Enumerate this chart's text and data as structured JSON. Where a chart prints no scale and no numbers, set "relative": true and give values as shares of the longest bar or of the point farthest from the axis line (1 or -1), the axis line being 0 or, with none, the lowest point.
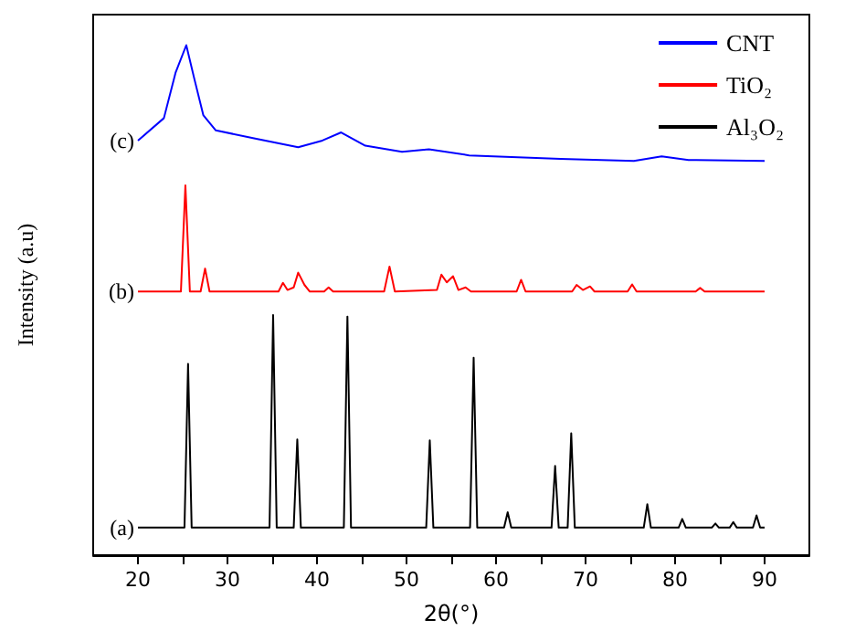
{
  "chart_data": {
    "type": "line",
    "relative": true,
    "xlabel": "2θ(°)",
    "ylabel": "Intensity (a.u)",
    "xlim": [
      15,
      95
    ],
    "xticks": [
      20,
      {
        "value": 25,
        "label": null
      },
      30,
      {
        "value": 35,
        "label": null
      },
      40,
      {
        "value": 45,
        "label": null
      },
      50,
      {
        "value": 55,
        "label": null
      },
      60,
      {
        "value": 65,
        "label": null
      },
      70,
      {
        "value": 75,
        "label": null
      },
      80,
      {
        "value": 85,
        "label": null
      },
      90
    ],
    "legend": "top right",
    "grid": false,
    "marker": "none",
    "line_style": "solid",
    "annotations": [
      "(c)",
      "(b)",
      "(a)"
    ],
    "series": [
      {
        "name": "CNT",
        "color": "#0000ff",
        "x": [
          20,
          22.9,
          24.2,
          25.4,
          26.3,
          27.3,
          28.7,
          33.1,
          37.9,
          40.6,
          42.7,
          45.4,
          49.5,
          52.5,
          57,
          67.2,
          75.4,
          78.5,
          81.5,
          90
        ],
        "values": [
          0.813,
          0.857,
          0.946,
          1,
          0.934,
          0.863,
          0.833,
          0.817,
          0.8,
          0.813,
          0.829,
          0.803,
          0.791,
          0.796,
          0.784,
          0.777,
          0.773,
          0.782,
          0.775,
          0.773
        ]
      },
      {
        "name": "TiO₂",
        "color": "#ff0000",
        "x": [
          20,
          24.8,
          25.3,
          25.8,
          27,
          27.5,
          28,
          35.7,
          36.2,
          36.7,
          37.4,
          37.9,
          38.6,
          39.2,
          40.8,
          41.3,
          41.8,
          47.5,
          48.1,
          48.7,
          53.4,
          53.9,
          54.5,
          55.2,
          55.8,
          56.6,
          57.2,
          62.3,
          62.8,
          63.3,
          68.5,
          69,
          69.7,
          70.5,
          71,
          74.7,
          75.2,
          75.7,
          82.3,
          82.8,
          83.3,
          90
        ],
        "values": [
          0.517,
          0.517,
          0.725,
          0.517,
          0.517,
          0.562,
          0.517,
          0.517,
          0.534,
          0.52,
          0.525,
          0.554,
          0.53,
          0.517,
          0.517,
          0.525,
          0.517,
          0.517,
          0.566,
          0.517,
          0.52,
          0.55,
          0.535,
          0.547,
          0.52,
          0.525,
          0.517,
          0.517,
          0.54,
          0.517,
          0.517,
          0.53,
          0.52,
          0.527,
          0.517,
          0.517,
          0.531,
          0.517,
          0.517,
          0.524,
          0.517,
          0.517
        ]
      },
      {
        "name": "Al₃O₂",
        "color": "#000000",
        "x": [
          20,
          25.2,
          25.6,
          26,
          34.7,
          35.1,
          35.5,
          37.4,
          37.8,
          38.2,
          43,
          43.4,
          43.8,
          52.2,
          52.6,
          53,
          57.1,
          57.5,
          57.9,
          60.9,
          61.3,
          61.7,
          66.2,
          66.6,
          67,
          68,
          68.4,
          68.8,
          76.5,
          76.9,
          77.3,
          80.4,
          80.8,
          81.2,
          84.1,
          84.5,
          84.9,
          86.1,
          86.5,
          86.9,
          88.7,
          89.1,
          89.5,
          90
        ],
        "values": [
          0.054,
          0.054,
          0.375,
          0.054,
          0.054,
          0.471,
          0.054,
          0.054,
          0.227,
          0.054,
          0.054,
          0.468,
          0.054,
          0.054,
          0.225,
          0.054,
          0.054,
          0.387,
          0.054,
          0.054,
          0.084,
          0.054,
          0.054,
          0.175,
          0.054,
          0.054,
          0.239,
          0.054,
          0.054,
          0.1,
          0.054,
          0.054,
          0.071,
          0.054,
          0.054,
          0.062,
          0.054,
          0.054,
          0.065,
          0.054,
          0.054,
          0.078,
          0.054,
          0.054
        ]
      }
    ]
  }
}
